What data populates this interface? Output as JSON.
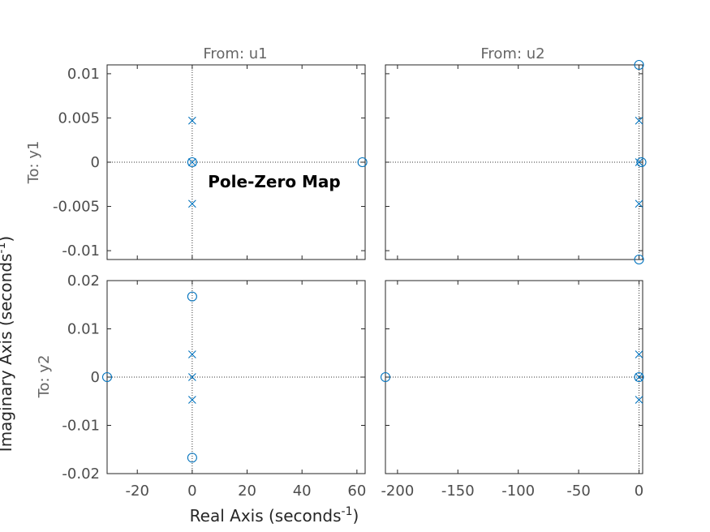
{
  "chart_data": {
    "type": "scatter",
    "title": "Pole-Zero Map",
    "xlabel": "Real Axis (seconds",
    "xlabel_sup": "-1",
    "xlabel_end": ")",
    "ylabel": "Imaginary Axis (seconds",
    "ylabel_sup": "-1",
    "ylabel_end": ")",
    "marker_color": "#0072bd",
    "columns": [
      "From: u1",
      "From: u2"
    ],
    "rows": [
      "To: y1",
      "To: y2"
    ],
    "x_axes": [
      {
        "xlim": [
          -31,
          63
        ],
        "ticks": [
          -20,
          0,
          20,
          40,
          60
        ],
        "tick_labels": [
          "-20",
          "0",
          "20",
          "40",
          "60"
        ]
      },
      {
        "xlim": [
          -210,
          3
        ],
        "ticks": [
          -200,
          -150,
          -100,
          -50,
          0
        ],
        "tick_labels": [
          "-200",
          "-150",
          "-100",
          "-50",
          "0"
        ]
      }
    ],
    "y_axes": [
      {
        "ylim": [
          -0.011,
          0.011
        ],
        "ticks": [
          -0.01,
          -0.005,
          0,
          0.005,
          0.01
        ],
        "tick_labels": [
          "-0.01",
          "-0.005",
          "0",
          "0.005",
          "0.01"
        ]
      },
      {
        "ylim": [
          -0.02,
          0.02
        ],
        "ticks": [
          -0.02,
          -0.01,
          0,
          0.01,
          0.02
        ],
        "tick_labels": [
          "-0.02",
          "-0.01",
          "0",
          "0.01",
          "0.02"
        ]
      }
    ],
    "subplots": [
      {
        "row": 0,
        "col": 0,
        "poles": [
          {
            "x": 0,
            "y": 0.0047
          },
          {
            "x": 0,
            "y": 0
          },
          {
            "x": 0,
            "y": -0.0047
          }
        ],
        "zeros": [
          {
            "x": 0,
            "y": 0
          },
          {
            "x": 62,
            "y": 0
          }
        ]
      },
      {
        "row": 0,
        "col": 1,
        "poles": [
          {
            "x": 0,
            "y": 0.0047
          },
          {
            "x": 0,
            "y": 0
          },
          {
            "x": 0,
            "y": -0.0047
          }
        ],
        "zeros": [
          {
            "x": 0,
            "y": 0.011
          },
          {
            "x": 0,
            "y": -0.011
          },
          {
            "x": 2,
            "y": 0
          }
        ]
      },
      {
        "row": 1,
        "col": 0,
        "poles": [
          {
            "x": 0,
            "y": 0.0047
          },
          {
            "x": 0,
            "y": 0
          },
          {
            "x": 0,
            "y": -0.0047
          }
        ],
        "zeros": [
          {
            "x": 0,
            "y": 0.0167
          },
          {
            "x": 0,
            "y": -0.0167
          },
          {
            "x": -31,
            "y": 0
          }
        ]
      },
      {
        "row": 1,
        "col": 1,
        "poles": [
          {
            "x": 0,
            "y": 0.0047
          },
          {
            "x": 0,
            "y": 0
          },
          {
            "x": 0,
            "y": -0.0047
          }
        ],
        "zeros": [
          {
            "x": 0,
            "y": 0
          },
          {
            "x": -210,
            "y": 0
          }
        ]
      }
    ]
  }
}
